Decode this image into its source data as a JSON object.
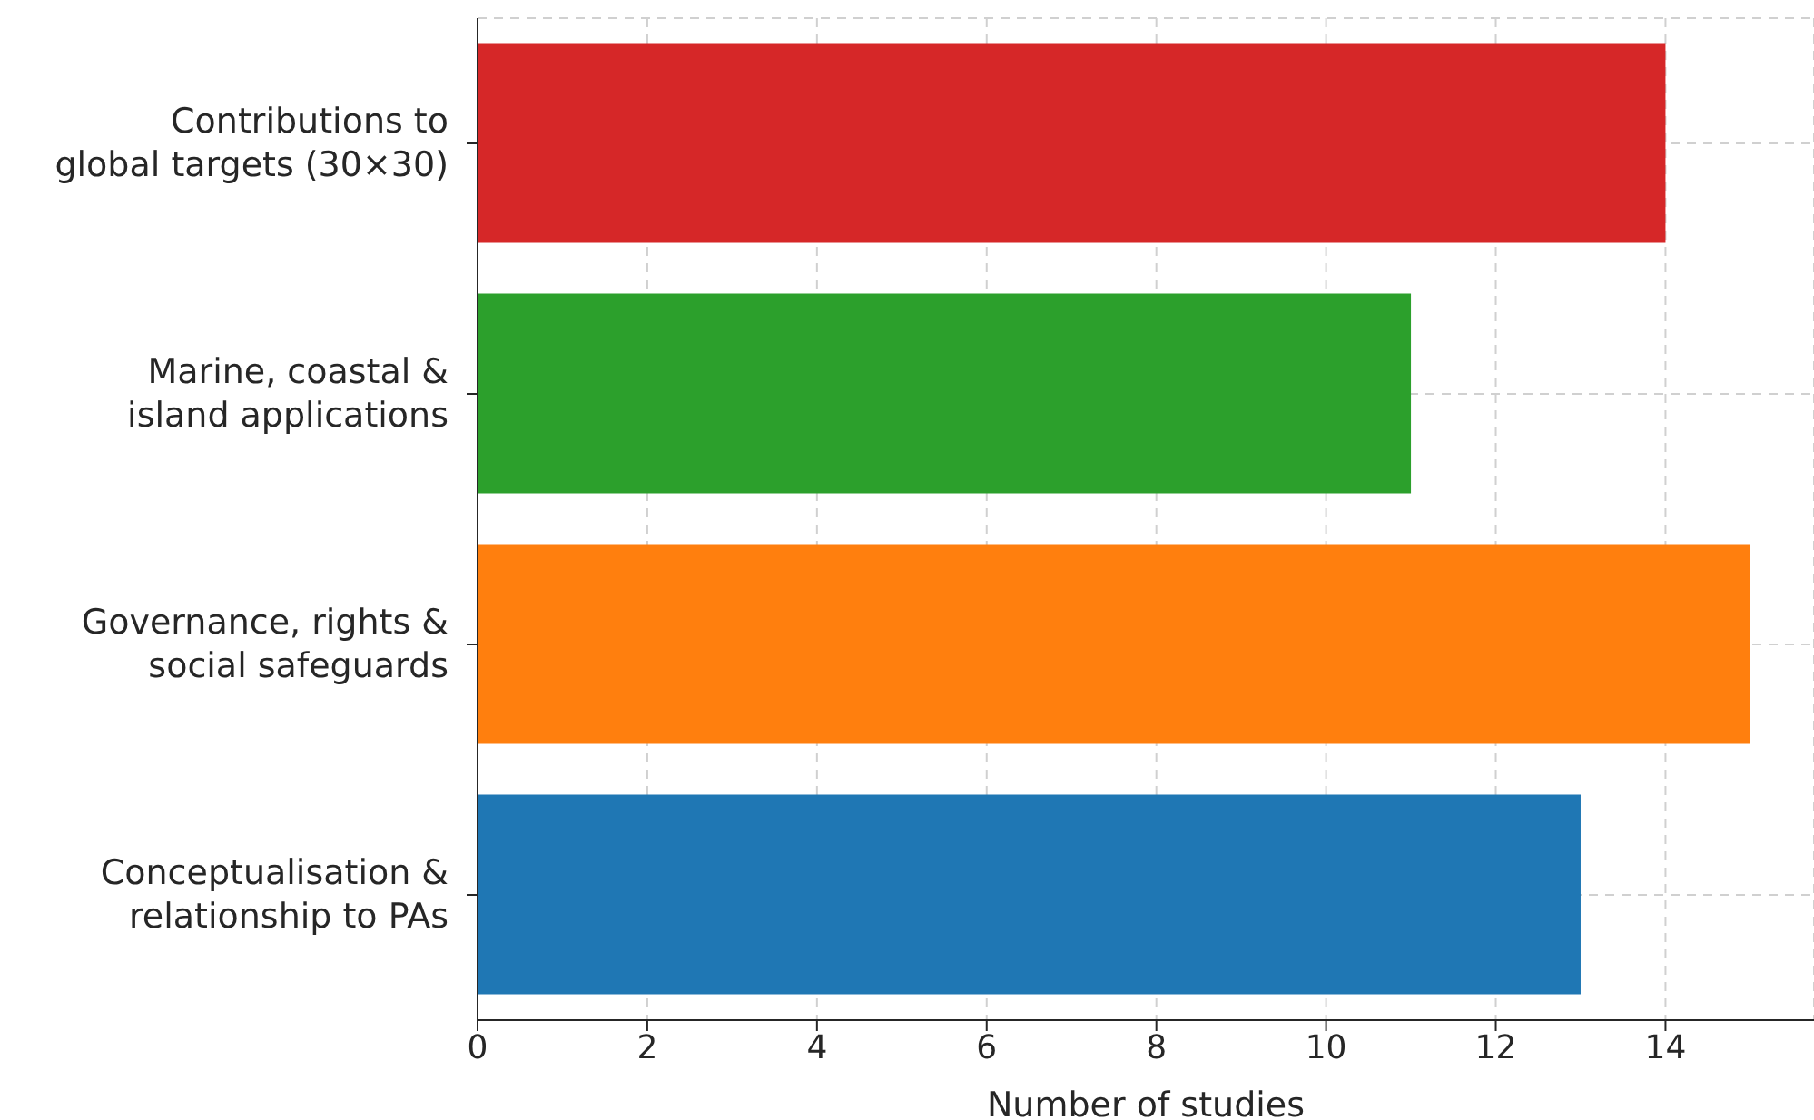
{
  "chart_data": {
    "type": "bar",
    "orientation": "horizontal",
    "xlabel": "Number of studies",
    "categories": [
      "Contributions to\nglobal targets (30×30)",
      "Marine, coastal &\nisland applications",
      "Governance, rights &\nsocial safeguards",
      "Conceptualisation &\nrelationship to PAs"
    ],
    "values": [
      14,
      11,
      15,
      13
    ],
    "colors": [
      "#d62728",
      "#2ca02c",
      "#ff7f0e",
      "#1f77b4"
    ],
    "xlim": [
      0,
      15.75
    ],
    "xticks": [
      0,
      2,
      4,
      6,
      8,
      10,
      12,
      14
    ],
    "grid": true
  }
}
